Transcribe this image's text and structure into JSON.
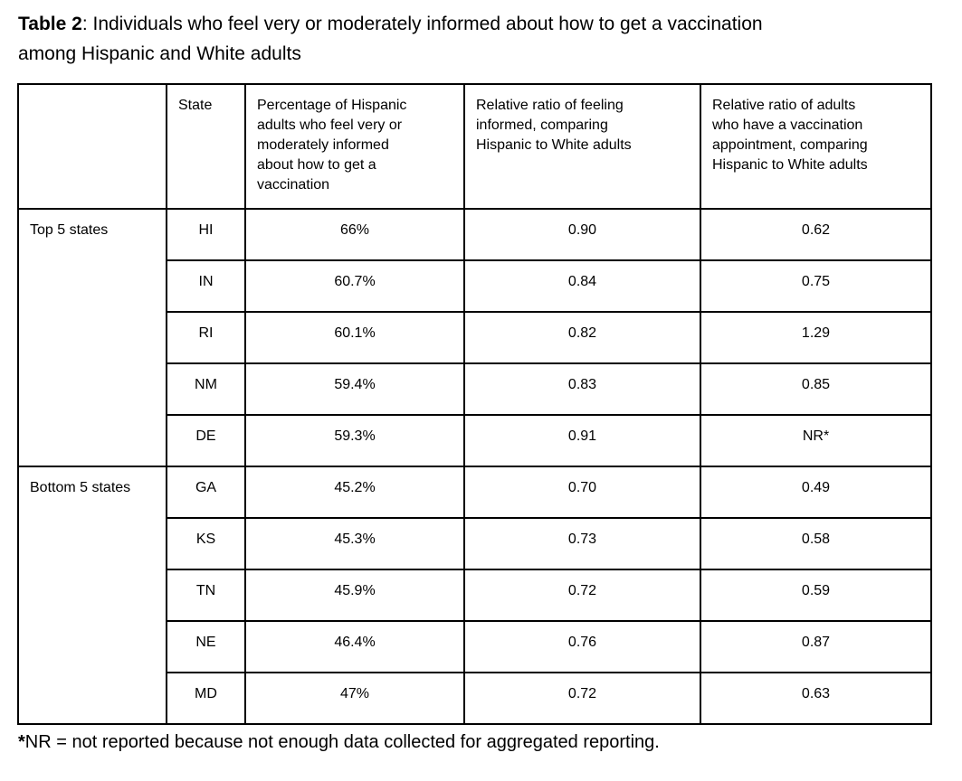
{
  "page": {
    "title_bold": "Table 2",
    "title_line1_rest": ": Individuals who feel very or moderately informed about how to get a vaccination",
    "title_line2": "among Hispanic and White adults",
    "footnote_marker": "*",
    "footnote_text": "NR = not reported because not enough data collected for aggregated reporting."
  },
  "colors": {
    "background": "#ffffff",
    "text": "#000000",
    "border": "#000000"
  },
  "table": {
    "headers": {
      "group": "",
      "state": "State",
      "percentage": "Percentage of Hispanic adults who feel very or moderately informed about how to get a vaccination",
      "ratio_informed": "Relative ratio of feeling informed, comparing Hispanic to White adults",
      "ratio_appointment": "Relative ratio of adults who have a vaccination appointment, comparing Hispanic to White adults"
    },
    "groups": [
      {
        "label": "Top 5 states",
        "rows": [
          {
            "state": "HI",
            "percentage": "66%",
            "ratio_informed": "0.90",
            "ratio_appointment": "0.62"
          },
          {
            "state": "IN",
            "percentage": "60.7%",
            "ratio_informed": "0.84",
            "ratio_appointment": "0.75"
          },
          {
            "state": "RI",
            "percentage": "60.1%",
            "ratio_informed": "0.82",
            "ratio_appointment": "1.29"
          },
          {
            "state": "NM",
            "percentage": "59.4%",
            "ratio_informed": "0.83",
            "ratio_appointment": "0.85"
          },
          {
            "state": "DE",
            "percentage": "59.3%",
            "ratio_informed": "0.91",
            "ratio_appointment": "NR*"
          }
        ]
      },
      {
        "label": "Bottom 5 states",
        "rows": [
          {
            "state": "GA",
            "percentage": "45.2%",
            "ratio_informed": "0.70",
            "ratio_appointment": "0.49"
          },
          {
            "state": "KS",
            "percentage": "45.3%",
            "ratio_informed": "0.73",
            "ratio_appointment": "0.58"
          },
          {
            "state": "TN",
            "percentage": "45.9%",
            "ratio_informed": "0.72",
            "ratio_appointment": "0.59"
          },
          {
            "state": "NE",
            "percentage": "46.4%",
            "ratio_informed": "0.76",
            "ratio_appointment": "0.87"
          },
          {
            "state": "MD",
            "percentage": "47%",
            "ratio_informed": "0.72",
            "ratio_appointment": "0.63"
          }
        ]
      }
    ]
  }
}
